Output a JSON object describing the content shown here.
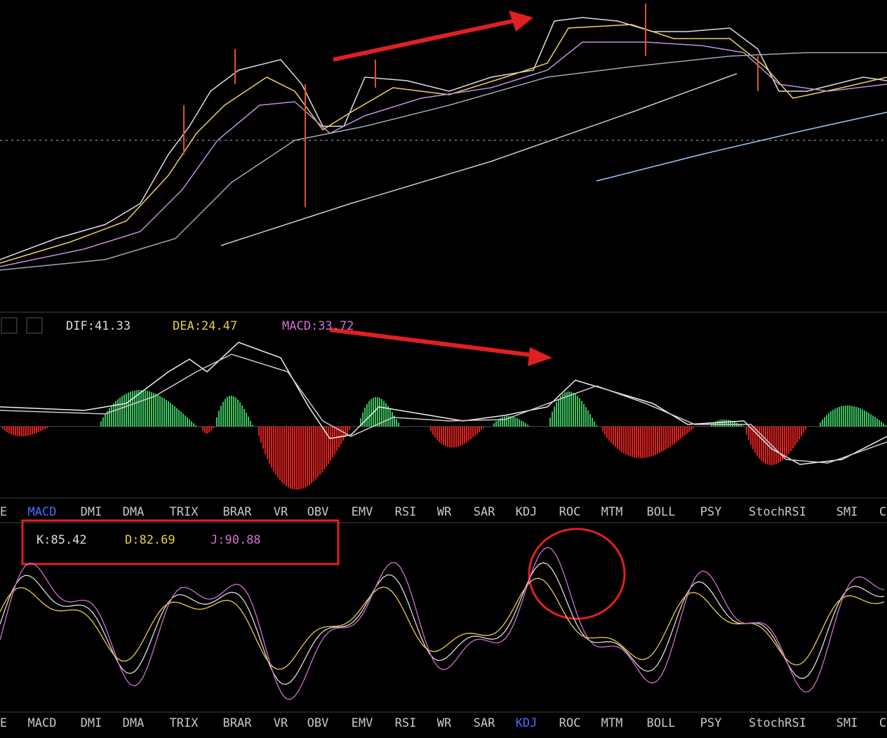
{
  "macd_panel": {
    "dif": "DIF:41.33",
    "dea": "DEA:24.47",
    "macd": "MACD:33.72"
  },
  "kdj_panel": {
    "k": "K:85.42",
    "d": "D:82.69",
    "j": "J:90.88"
  },
  "tabs_top": {
    "items": [
      "E",
      "MACD",
      "DMI",
      "DMA",
      "TRIX",
      "BRAR",
      "VR",
      "OBV",
      "EMV",
      "RSI",
      "WR",
      "SAR",
      "KDJ",
      "ROC",
      "MTM",
      "BOLL",
      "PSY",
      "StochRSI",
      "SMI",
      "C"
    ],
    "active": 1
  },
  "tabs_bottom": {
    "items": [
      "E",
      "MACD",
      "DMI",
      "DMA",
      "TRIX",
      "BRAR",
      "VR",
      "OBV",
      "EMV",
      "RSI",
      "WR",
      "SAR",
      "KDJ",
      "ROC",
      "MTM",
      "BOLL",
      "PSY",
      "StochRSI",
      "SMI",
      "C"
    ],
    "active": 12
  }
}
